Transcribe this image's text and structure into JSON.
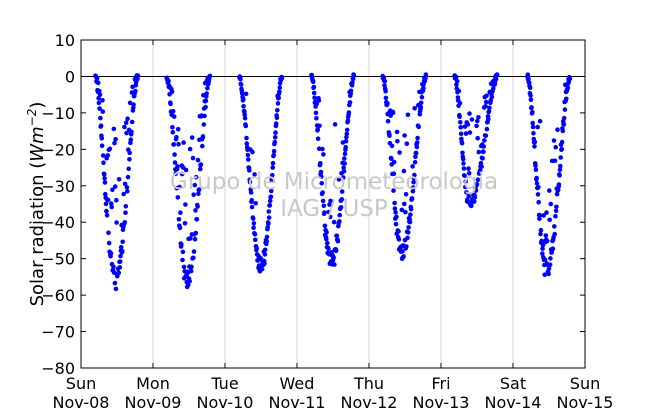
{
  "chart_data": {
    "type": "scatter",
    "title": "",
    "xlabel": "",
    "ylabel_prefix": "Solar radiation (",
    "ylabel_unit_base": "Wm",
    "ylabel_unit_exp": "−2",
    "ylabel_suffix": ")",
    "ylim": [
      -80,
      10
    ],
    "xlim": [
      0,
      7
    ],
    "yticks": [
      -80,
      -70,
      -60,
      -50,
      -40,
      -30,
      -20,
      -10,
      0,
      10
    ],
    "ytick_labels": [
      "−80",
      "−70",
      "−60",
      "−50",
      "−40",
      "−30",
      "−20",
      "−10",
      "0",
      "10"
    ],
    "xticks": [
      {
        "pos": 0,
        "day": "Sun",
        "date": "Nov-08"
      },
      {
        "pos": 1,
        "day": "Mon",
        "date": "Nov-09"
      },
      {
        "pos": 2,
        "day": "Tue",
        "date": "Nov-10"
      },
      {
        "pos": 3,
        "day": "Wed",
        "date": "Nov-11"
      },
      {
        "pos": 4,
        "day": "Thu",
        "date": "Nov-12"
      },
      {
        "pos": 5,
        "day": "Fri",
        "date": "Nov-13"
      },
      {
        "pos": 6,
        "day": "Sat",
        "date": "Nov-14"
      },
      {
        "pos": 7,
        "day": "Sun",
        "date": "Nov-15"
      }
    ],
    "grid": "vertical",
    "zero_line": true,
    "point_color": "#0000ff",
    "watermark_lines": [
      "Grupo de Micrometeorologia",
      "IAG / USP"
    ],
    "series": [
      {
        "days": [
          {
            "start": 0.2,
            "end": 0.79,
            "min": -58,
            "peak": 0.48,
            "noise": 0.35
          },
          {
            "start": 1.19,
            "end": 1.79,
            "min": -58,
            "peak": 1.48,
            "noise": 0.4
          },
          {
            "start": 2.2,
            "end": 2.79,
            "min": -54,
            "peak": 2.5,
            "noise": 0.05
          },
          {
            "start": 3.2,
            "end": 3.79,
            "min": -53,
            "peak": 3.48,
            "noise": 0.15
          },
          {
            "start": 4.19,
            "end": 4.79,
            "min": -50,
            "peak": 4.46,
            "noise": 0.25
          },
          {
            "start": 5.19,
            "end": 5.78,
            "min": -36,
            "peak": 5.4,
            "noise": 0.3
          },
          {
            "start": 6.2,
            "end": 6.79,
            "min": -55,
            "peak": 6.47,
            "noise": 0.3
          }
        ]
      }
    ]
  }
}
